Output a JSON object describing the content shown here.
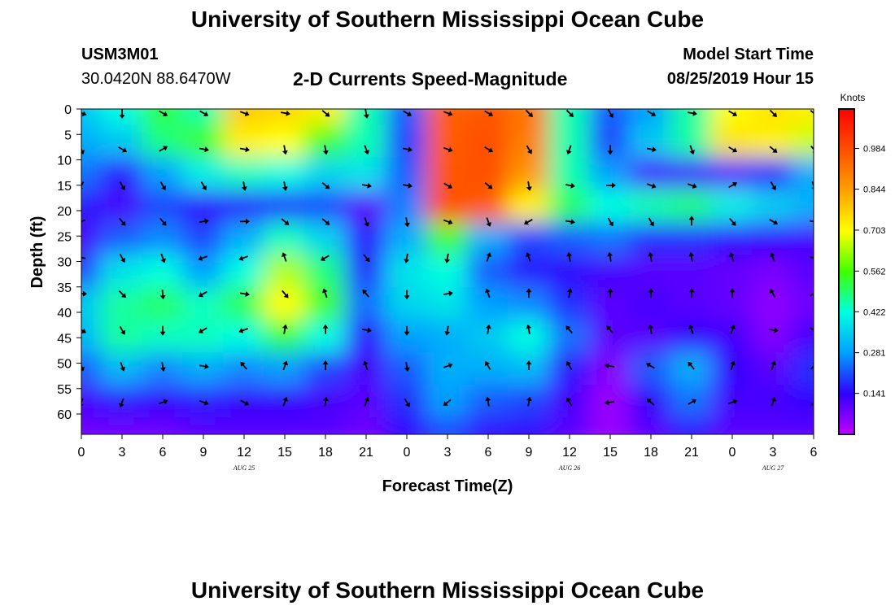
{
  "header": {
    "title": "University of Southern Mississippi Ocean Cube",
    "station_id": "USM3M01",
    "coordinates": "30.0420N 88.6470W",
    "subtitle": "2-D Currents Speed-Magnitude",
    "model_start_label": "Model Start Time",
    "model_start_value": "08/25/2019 Hour 15"
  },
  "footer": {
    "title": "University of Southern Mississippi Ocean Cube"
  },
  "chart_data": {
    "type": "heatmap",
    "title": "2-D Currents Speed-Magnitude",
    "xlabel": "Forecast Time(Z)",
    "ylabel": "Depth (ft)",
    "y_ticks": [
      "0",
      "5",
      "10",
      "15",
      "20",
      "25",
      "30",
      "35",
      "40",
      "45",
      "50",
      "55",
      "60"
    ],
    "y_range": [
      0,
      64
    ],
    "y_inverted": true,
    "x_tick_labels": [
      "0",
      "3",
      "6",
      "9",
      "12",
      "15",
      "18",
      "21",
      "0",
      "3",
      "6",
      "9",
      "12",
      "15",
      "18",
      "21",
      "0",
      "3",
      "6"
    ],
    "date_labels": [
      {
        "text": "AUG 25",
        "tick_index": 4
      },
      {
        "text": "AUG 26",
        "tick_index": 12
      },
      {
        "text": "AUG 27",
        "tick_index": 17
      }
    ],
    "colorbar": {
      "unit": "Knots",
      "range": [
        0,
        1.12
      ],
      "tick_values": [
        "0.984",
        "0.844",
        "0.703",
        "0.562",
        "0.422",
        "0.281",
        "0.141"
      ],
      "colors": [
        "#c000ff",
        "#3000ff",
        "#00a0ff",
        "#00ffe0",
        "#40ff00",
        "#ffff00",
        "#ffa000",
        "#ff5000",
        "#ff0000"
      ]
    },
    "grid": false,
    "speed_field_knots": [
      [
        0.34,
        0.42,
        0.52,
        0.45,
        0.78,
        0.76,
        0.72,
        0.45,
        0.22,
        0.95,
        0.97,
        0.92,
        0.45,
        0.22,
        0.28,
        0.46,
        0.7,
        0.74,
        0.72
      ],
      [
        0.3,
        0.34,
        0.48,
        0.55,
        0.72,
        0.7,
        0.55,
        0.45,
        0.2,
        0.96,
        0.98,
        0.9,
        0.45,
        0.2,
        0.34,
        0.46,
        0.74,
        0.72,
        0.66
      ],
      [
        0.24,
        0.16,
        0.28,
        0.4,
        0.44,
        0.42,
        0.36,
        0.38,
        0.22,
        0.97,
        0.98,
        0.86,
        0.45,
        0.28,
        0.12,
        0.12,
        0.1,
        0.16,
        0.3
      ],
      [
        0.16,
        0.12,
        0.2,
        0.14,
        0.16,
        0.18,
        0.2,
        0.1,
        0.25,
        0.98,
        0.96,
        0.72,
        0.5,
        0.42,
        0.45,
        0.48,
        0.4,
        0.35,
        0.3
      ],
      [
        0.12,
        0.22,
        0.26,
        0.2,
        0.3,
        0.44,
        0.36,
        0.16,
        0.3,
        0.55,
        0.3,
        0.2,
        0.22,
        0.24,
        0.18,
        0.18,
        0.15,
        0.14,
        0.12
      ],
      [
        0.2,
        0.38,
        0.42,
        0.28,
        0.42,
        0.64,
        0.48,
        0.18,
        0.38,
        0.42,
        0.22,
        0.16,
        0.14,
        0.12,
        0.1,
        0.1,
        0.09,
        0.07,
        0.1
      ],
      [
        0.34,
        0.46,
        0.5,
        0.44,
        0.52,
        0.7,
        0.56,
        0.24,
        0.36,
        0.38,
        0.28,
        0.26,
        0.18,
        0.1,
        0.12,
        0.1,
        0.09,
        0.05,
        0.08
      ],
      [
        0.32,
        0.46,
        0.44,
        0.44,
        0.42,
        0.52,
        0.42,
        0.16,
        0.28,
        0.3,
        0.34,
        0.42,
        0.24,
        0.1,
        0.1,
        0.14,
        0.12,
        0.06,
        0.12
      ],
      [
        0.22,
        0.32,
        0.26,
        0.3,
        0.26,
        0.28,
        0.2,
        0.12,
        0.22,
        0.3,
        0.3,
        0.32,
        0.16,
        0.06,
        0.22,
        0.3,
        0.14,
        0.1,
        0.18
      ],
      [
        0.12,
        0.16,
        0.14,
        0.16,
        0.14,
        0.14,
        0.12,
        0.1,
        0.18,
        0.28,
        0.22,
        0.2,
        0.12,
        0.04,
        0.14,
        0.24,
        0.12,
        0.12,
        0.14
      ],
      [
        0.08,
        0.08,
        0.08,
        0.1,
        0.1,
        0.1,
        0.1,
        0.08,
        0.14,
        0.2,
        0.14,
        0.14,
        0.1,
        0.04,
        0.1,
        0.14,
        0.1,
        0.1,
        0.1
      ]
    ],
    "vector_directions_deg": [
      [
        110,
        180,
        120,
        120,
        110,
        100,
        130,
        170,
        120,
        110,
        120,
        135,
        135,
        150,
        120,
        100,
        120,
        135,
        130
      ],
      [
        160,
        120,
        60,
        100,
        100,
        170,
        170,
        160,
        100,
        110,
        120,
        150,
        200,
        180,
        100,
        160,
        120,
        130,
        140
      ],
      [
        210,
        150,
        150,
        150,
        170,
        170,
        130,
        100,
        100,
        120,
        130,
        170,
        100,
        90,
        110,
        110,
        60,
        150,
        160
      ],
      [
        250,
        140,
        140,
        80,
        90,
        130,
        130,
        160,
        170,
        110,
        160,
        240,
        100,
        150,
        150,
        0,
        140,
        120,
        100
      ],
      [
        280,
        150,
        160,
        250,
        250,
        340,
        240,
        140,
        190,
        190,
        20,
        340,
        350,
        350,
        350,
        350,
        340,
        340,
        100
      ],
      [
        90,
        135,
        175,
        240,
        100,
        140,
        340,
        320,
        180,
        80,
        340,
        0,
        10,
        0,
        0,
        0,
        0,
        330,
        60
      ],
      [
        120,
        150,
        180,
        240,
        250,
        10,
        0,
        100,
        180,
        190,
        10,
        350,
        320,
        320,
        350,
        340,
        20,
        100,
        120
      ],
      [
        160,
        160,
        170,
        100,
        320,
        20,
        0,
        340,
        170,
        70,
        330,
        0,
        330,
        280,
        300,
        320,
        20,
        20,
        40
      ],
      [
        200,
        200,
        70,
        110,
        120,
        20,
        10,
        20,
        150,
        230,
        350,
        10,
        330,
        260,
        310,
        60,
        70,
        20,
        40
      ]
    ]
  }
}
